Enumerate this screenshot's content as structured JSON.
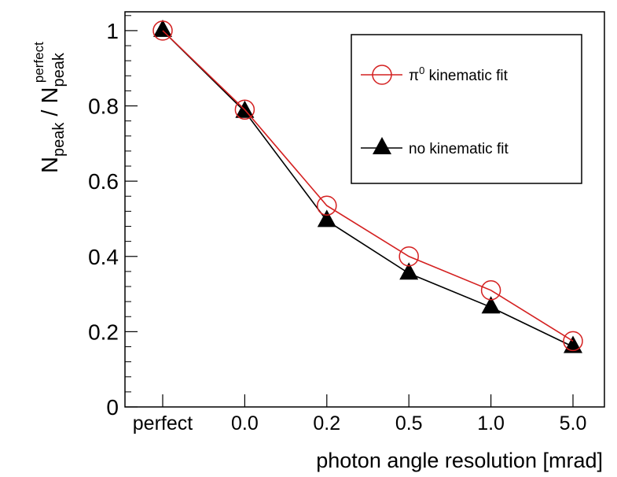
{
  "chart_data": {
    "type": "line",
    "title": "",
    "xlabel": "photon angle resolution [mrad]",
    "ylabel": {
      "main": "N",
      "sub1": "peak",
      "sep": " / N",
      "sub2": "peak",
      "sup2": "perfect"
    },
    "categories": [
      "perfect",
      "0.0",
      "0.2",
      "0.5",
      "1.0",
      "5.0"
    ],
    "yticks": [
      "0",
      "0.2",
      "0.4",
      "0.6",
      "0.8",
      "1"
    ],
    "ylim": [
      0,
      1.05
    ],
    "grid": false,
    "legend_position": "top-right",
    "series": [
      {
        "name": "π",
        "name_sup": "0",
        "name_rest": " kinematic fit",
        "marker": "open-circle",
        "color": "#d42020",
        "values": [
          1.0,
          0.79,
          0.535,
          0.4,
          0.31,
          0.175
        ]
      },
      {
        "name": "no kinematic fit",
        "marker": "filled-triangle",
        "color": "#000000",
        "values": [
          1.0,
          0.785,
          0.495,
          0.355,
          0.265,
          0.16
        ]
      }
    ]
  }
}
